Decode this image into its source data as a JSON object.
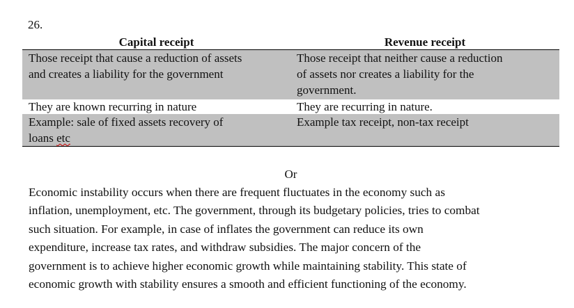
{
  "question_number": "26.",
  "table": {
    "headers": [
      "Capital receipt",
      "Revenue receipt"
    ],
    "rows": [
      {
        "capital": [
          "Those receipt that cause a reduction of assets",
          "and creates a liability for the government"
        ],
        "revenue": [
          "Those receipt that neither cause a reduction",
          "of assets nor creates a liability for the",
          "government."
        ]
      },
      {
        "capital": [
          "They are known recurring in nature"
        ],
        "revenue": [
          "They are recurring in nature."
        ]
      },
      {
        "capital_line1": "Example: sale of fixed assets recovery of",
        "capital_line2_prefix": "loans ",
        "capital_line2_flagged": "etc",
        "revenue": [
          "Example tax receipt, non-tax receipt"
        ]
      }
    ]
  },
  "separator": "Or",
  "paragraph_lines": [
    "Economic instability occurs when there are frequent fluctuates in the economy such as",
    "inflation, unemployment, etc. The government, through its budgetary policies, tries to combat",
    "such situation. For example, in case of inflates the government can reduce its own",
    "expenditure, increase tax rates, and withdraw subsidies. The major concern of the",
    "government is to achieve higher economic growth while maintaining stability. This state of",
    "economic growth with stability ensures a smooth and efficient functioning of the economy."
  ]
}
